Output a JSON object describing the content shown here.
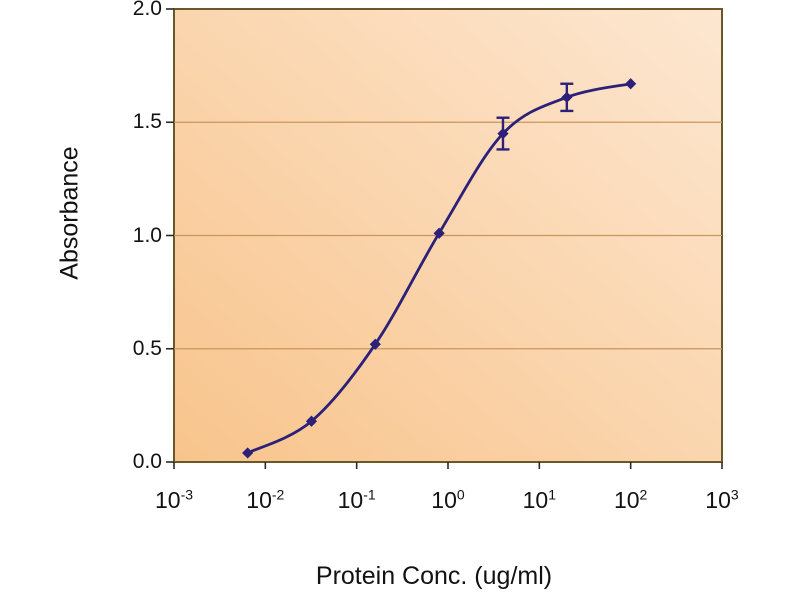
{
  "figure": {
    "kind": "elisa-standard-curve"
  },
  "chart_data": {
    "type": "line",
    "title": "",
    "xlabel": "Protein Conc. (ug/ml)",
    "ylabel": "Absorbance",
    "x_scale": "log",
    "series": [
      {
        "name": "absorbance-vs-concentration",
        "x": [
          0.0064,
          0.032,
          0.16,
          0.8,
          4,
          20,
          100
        ],
        "y": [
          0.04,
          0.18,
          0.52,
          1.01,
          1.45,
          1.61,
          1.67
        ],
        "yerr": [
          0,
          0,
          0,
          0,
          0.07,
          0.06,
          0
        ],
        "marker": "diamond"
      }
    ],
    "xlim_exponents": [
      -3,
      3
    ],
    "x_tick_exponents": [
      -3,
      -2,
      -1,
      0,
      1,
      2,
      3
    ],
    "x_tick_base": "10",
    "ylim": [
      0,
      2
    ],
    "y_ticks": [
      {
        "label": "0.0",
        "value": 0.0
      },
      {
        "label": "0.5",
        "value": 0.5
      },
      {
        "label": "1.0",
        "value": 1.0
      },
      {
        "label": "1.5",
        "value": 1.5
      },
      {
        "label": "2.0",
        "value": 2.0
      }
    ],
    "grid": "horizontal",
    "legend": "none",
    "colors": {
      "curve": "#2d2078",
      "plot_bg_light": "#fde7d1",
      "plot_bg_dark": "#f8c48c",
      "gridline": "#c9965d",
      "border": "#6a572a",
      "tick": "#2e2a20",
      "text": "#121212"
    }
  }
}
